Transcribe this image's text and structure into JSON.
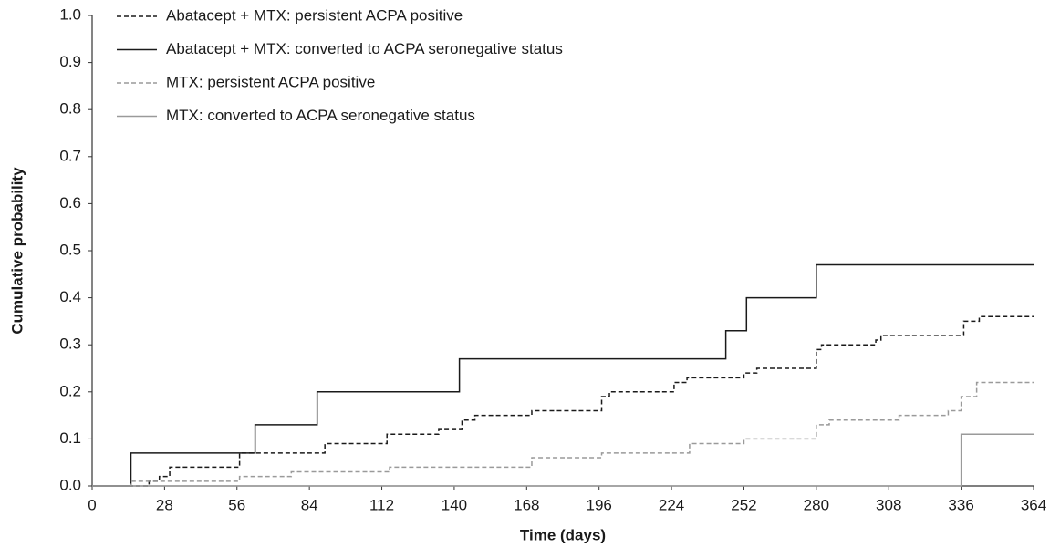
{
  "chart_data": {
    "type": "step",
    "xlabel": "Time (days)",
    "ylabel": "Cumulative probability",
    "xlim": [
      0,
      364
    ],
    "xticks": [
      0,
      28,
      56,
      84,
      112,
      140,
      168,
      196,
      224,
      252,
      280,
      308,
      336,
      364
    ],
    "ylim": [
      0,
      1
    ],
    "yticks": [
      {
        "value": 0,
        "label": "0.0"
      },
      0.1,
      0.2,
      0.3,
      0.4,
      0.5,
      0.6,
      0.7,
      0.8,
      0.9,
      {
        "value": 1,
        "label": "1.0"
      }
    ],
    "grid": false,
    "legend": "top-left",
    "series": [
      {
        "name": "Abatacept + MTX: persistent ACPA positive",
        "color": "#1a1a1a",
        "dashed": true,
        "x": [
          0,
          22,
          26,
          30,
          57,
          90,
          114,
          134,
          143,
          148,
          170,
          197,
          200,
          225,
          230,
          252,
          257,
          280,
          282,
          303,
          305,
          337,
          343,
          364
        ],
        "values": [
          0,
          0.01,
          0.02,
          0.04,
          0.07,
          0.09,
          0.11,
          0.12,
          0.14,
          0.15,
          0.16,
          0.19,
          0.2,
          0.22,
          0.23,
          0.24,
          0.25,
          0.29,
          0.3,
          0.31,
          0.32,
          0.35,
          0.36,
          0.36
        ]
      },
      {
        "name": "Abatacept + MTX: converted to ACPA seronegative status",
        "color": "#1a1a1a",
        "dashed": false,
        "x": [
          0,
          15,
          63,
          87,
          142,
          245,
          253,
          280,
          364
        ],
        "values": [
          0,
          0.07,
          0.13,
          0.2,
          0.27,
          0.33,
          0.4,
          0.47,
          0.47
        ]
      },
      {
        "name": "MTX: persistent ACPA positive",
        "color": "#9a9a9a",
        "dashed": true,
        "x": [
          0,
          15,
          57,
          77,
          115,
          170,
          197,
          231,
          252,
          280,
          285,
          312,
          331,
          336,
          342,
          364
        ],
        "values": [
          0,
          0.01,
          0.02,
          0.03,
          0.04,
          0.06,
          0.07,
          0.09,
          0.1,
          0.13,
          0.14,
          0.15,
          0.16,
          0.19,
          0.22,
          0.22
        ]
      },
      {
        "name": "MTX: converted to ACPA seronegative status",
        "color": "#9a9a9a",
        "dashed": false,
        "x": [
          0,
          336,
          364
        ],
        "values": [
          0,
          0.11,
          0.11
        ]
      }
    ]
  }
}
